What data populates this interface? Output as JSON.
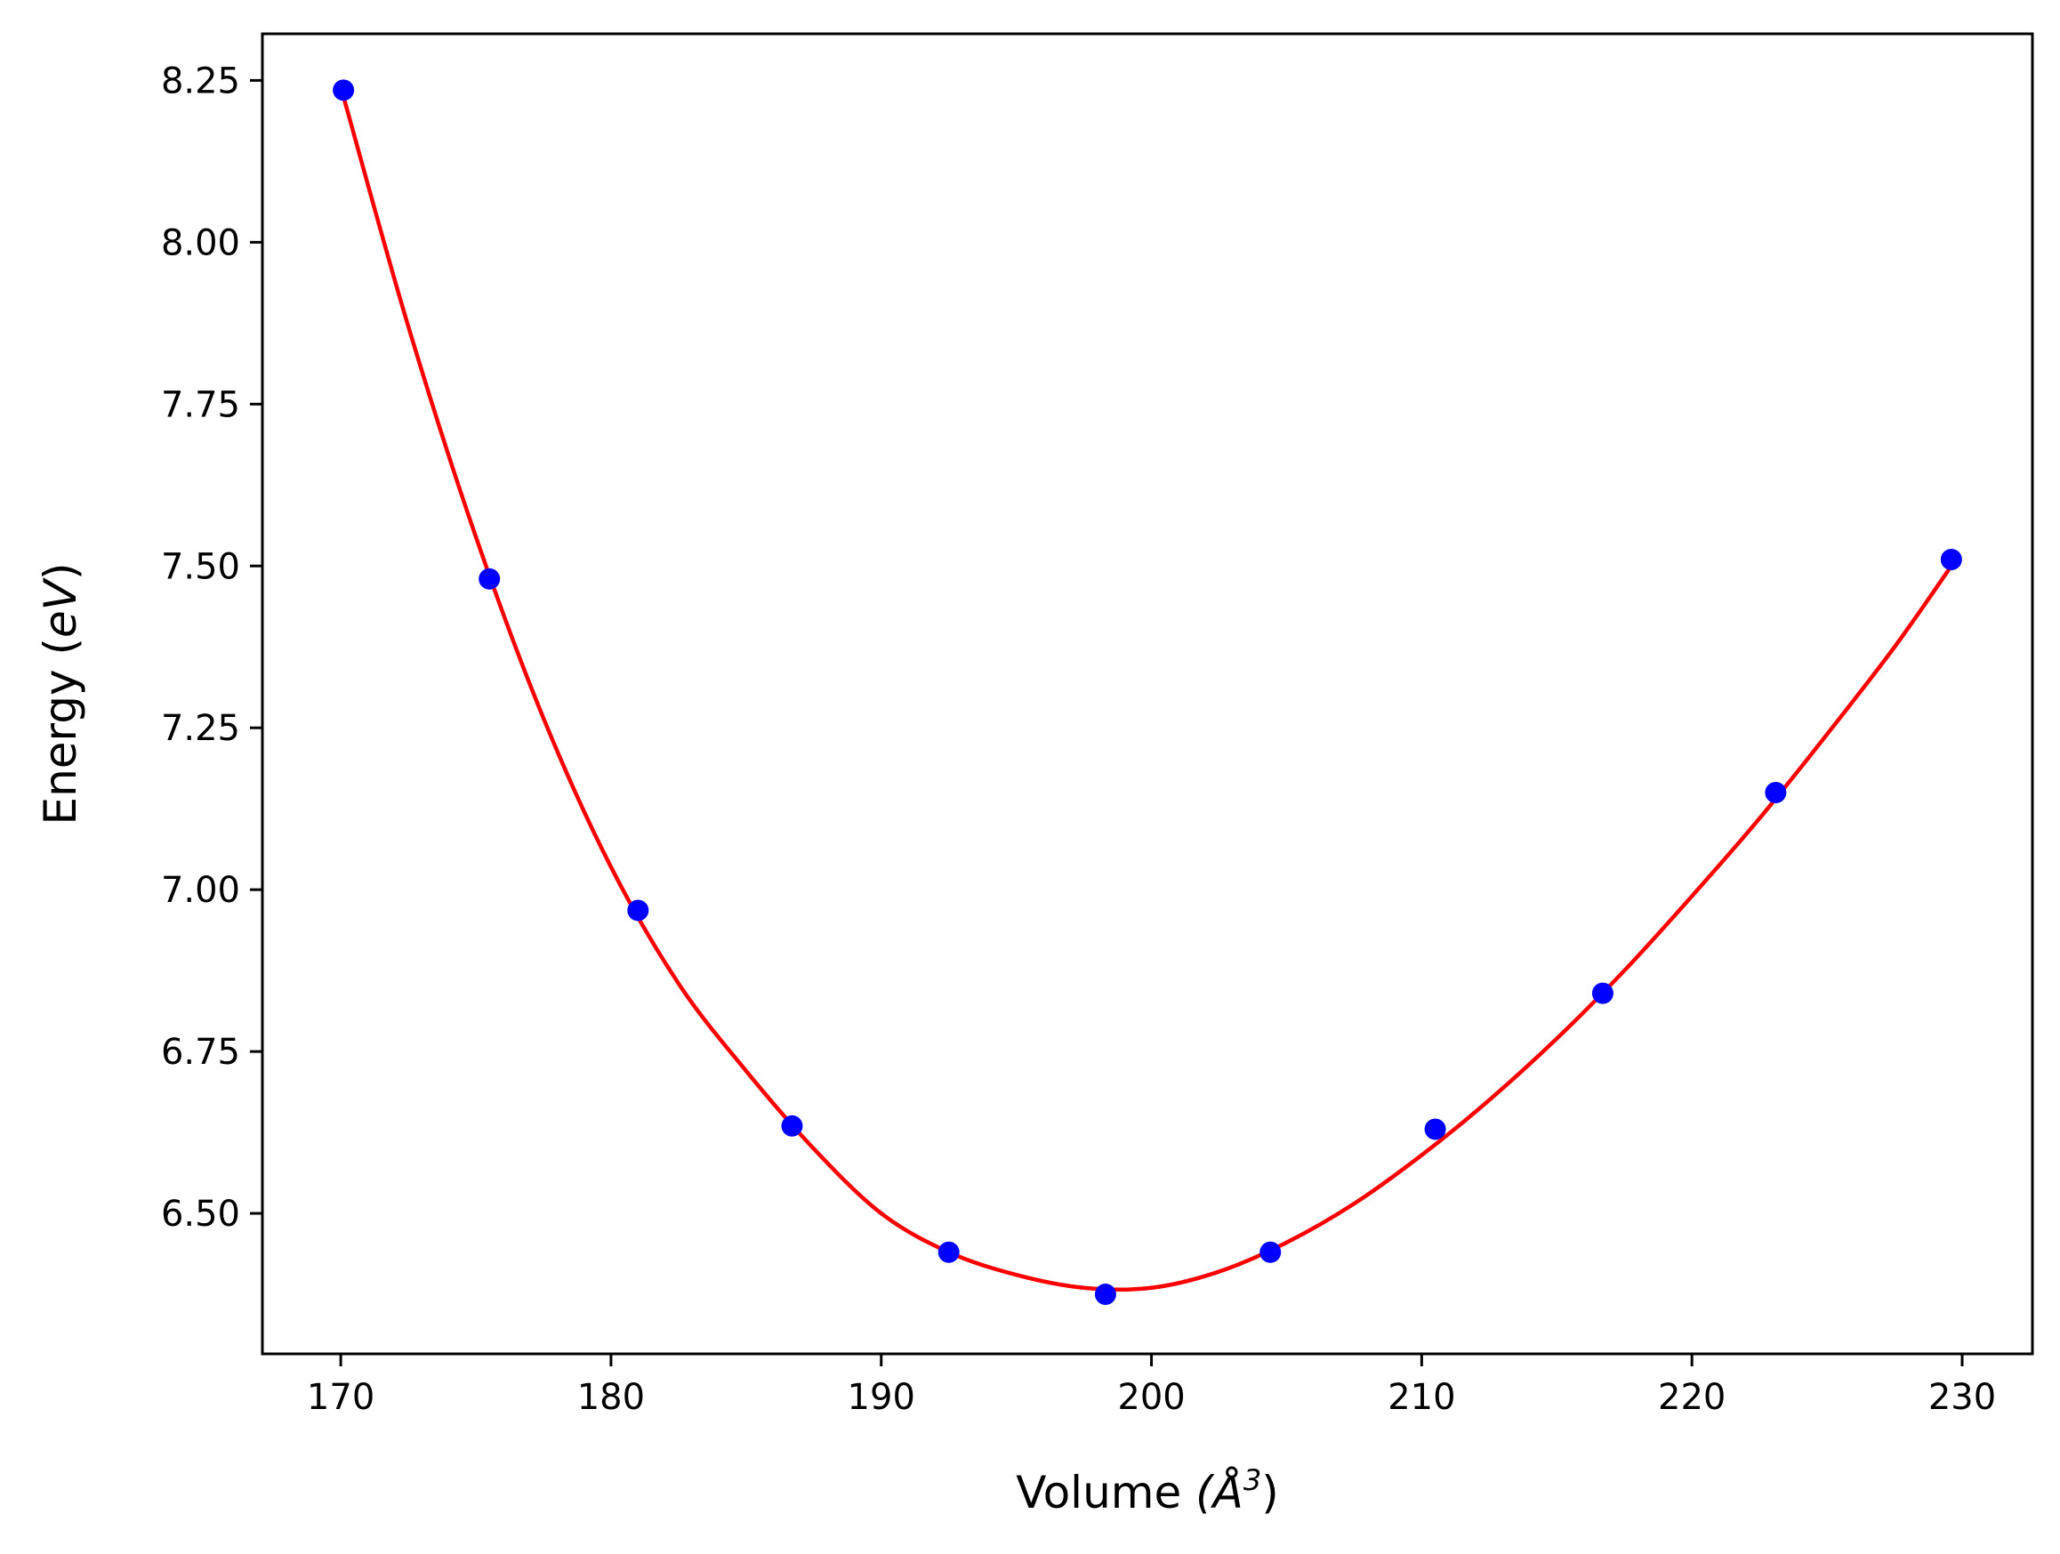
{
  "chart_data": {
    "type": "scatter",
    "xlabel": "Volume",
    "xlabel_unit": "(Å",
    "xlabel_unit_sup": "3",
    "xlabel_close": ")",
    "ylabel": "Energy",
    "ylabel_unit_open": "(",
    "ylabel_unit": "eV",
    "ylabel_unit_close": ")",
    "xlim": [
      167.1,
      232.6
    ],
    "ylim": [
      6.283,
      8.322
    ],
    "x_ticks": [
      "170",
      "180",
      "190",
      "200",
      "210",
      "220",
      "230"
    ],
    "y_ticks": [
      "6.50",
      "6.75",
      "7.00",
      "7.25",
      "7.50",
      "7.75",
      "8.00",
      "8.25"
    ],
    "grid": false,
    "legend": "none",
    "series": [
      {
        "kind": "points",
        "color": "#0000ff",
        "x": [
          170.1,
          175.5,
          181.0,
          186.7,
          192.5,
          198.3,
          204.4,
          210.5,
          216.7,
          223.1,
          229.6
        ],
        "y": [
          8.235,
          7.48,
          6.968,
          6.635,
          6.44,
          6.375,
          6.44,
          6.63,
          6.84,
          7.15,
          7.51
        ]
      },
      {
        "kind": "fit-line",
        "color": "#ff0000",
        "x": [
          170.1,
          172.5,
          175.0,
          177.5,
          180.0,
          182.5,
          185.0,
          187.5,
          190.0,
          192.5,
          195.0,
          197.5,
          200.0,
          202.5,
          205.0,
          207.5,
          210.0,
          212.5,
          215.0,
          217.5,
          220.0,
          222.5,
          225.0,
          227.5,
          229.6
        ],
        "y": [
          8.225,
          7.87,
          7.545,
          7.265,
          7.035,
          6.855,
          6.72,
          6.6,
          6.5,
          6.44,
          6.405,
          6.385,
          6.385,
          6.41,
          6.455,
          6.515,
          6.59,
          6.675,
          6.77,
          6.875,
          6.99,
          7.11,
          7.24,
          7.375,
          7.5
        ]
      }
    ]
  }
}
